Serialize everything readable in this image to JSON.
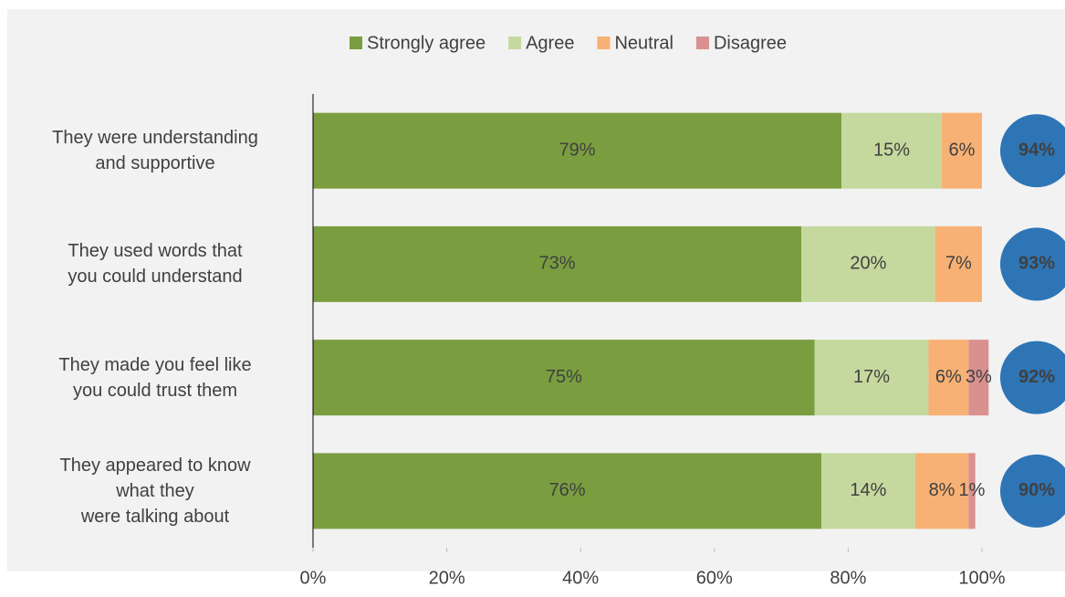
{
  "chart_data": {
    "type": "stacked-bar-horizontal",
    "categories": [
      "They were understanding\nand supportive",
      "They used words that\nyou could understand",
      "They made you feel like\nyou could trust them",
      "They appeared to know\nwhat they\nwere talking about"
    ],
    "series": [
      {
        "name": "Strongly agree",
        "color": "#7a9e3f",
        "values": [
          79,
          73,
          75,
          76
        ],
        "value_labels": [
          "79%",
          "73%",
          "75%",
          "76%"
        ]
      },
      {
        "name": "Agree",
        "color": "#c5d99f",
        "values": [
          15,
          20,
          17,
          14
        ],
        "value_labels": [
          "15%",
          "20%",
          "17%",
          "14%"
        ]
      },
      {
        "name": "Neutral",
        "color": "#f8b175",
        "values": [
          6,
          7,
          6,
          8
        ],
        "value_labels": [
          "6%",
          "7%",
          "6%",
          "8%"
        ]
      },
      {
        "name": "Disagree",
        "color": "#d9918f",
        "values": [
          null,
          null,
          3,
          1
        ],
        "value_labels": [
          null,
          null,
          "3%",
          "1%"
        ]
      }
    ],
    "totals": {
      "color": "#2e75b6",
      "values": [
        94,
        93,
        92,
        90
      ],
      "value_labels": [
        "94%",
        "93%",
        "92%",
        "90%"
      ]
    },
    "xlim": [
      0,
      100
    ],
    "xticks": [
      {
        "value": 0,
        "label": "0%"
      },
      {
        "value": 20,
        "label": "20%"
      },
      {
        "value": 40,
        "label": "40%"
      },
      {
        "value": 60,
        "label": "60%"
      },
      {
        "value": 80,
        "label": "80%"
      },
      {
        "value": 100,
        "label": "100%"
      }
    ],
    "legend": "top"
  }
}
